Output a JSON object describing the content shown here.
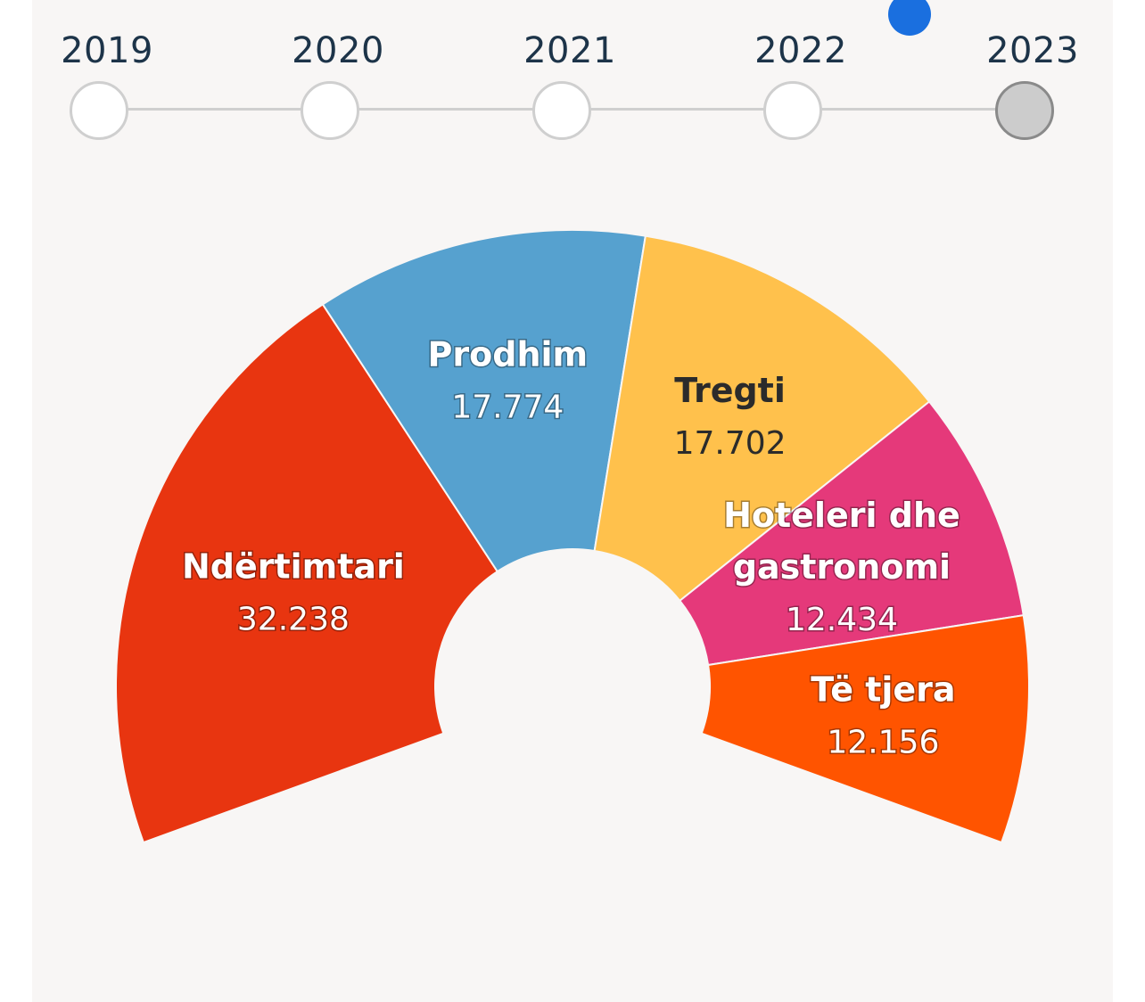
{
  "timeline": {
    "years": [
      "2019",
      "2020",
      "2021",
      "2022",
      "2023"
    ],
    "selected": "2023"
  },
  "chart_data": {
    "type": "pie",
    "variant": "semi-donut",
    "year": "2023",
    "slices": [
      {
        "label": "Ndërtimtari",
        "value": 32238,
        "display": "32.238",
        "color": "#e83510",
        "text_color": "#ffffff"
      },
      {
        "label": "Prodhim",
        "value": 17774,
        "display": "17.774",
        "color": "#56a1cf",
        "text_color": "#ffffff"
      },
      {
        "label": "Tregti",
        "value": 17702,
        "display": "17.702",
        "color": "#ffc14c",
        "text_color": "#2b2b2b"
      },
      {
        "label": "Hoteleri dhe gastronomi",
        "label_lines": [
          "Hoteleri dhe",
          "gastronomi"
        ],
        "value": 12434,
        "display": "12.434",
        "color": "#e5397a",
        "text_color": "#ffffff"
      },
      {
        "label": "Të tjera",
        "value": 12156,
        "display": "12.156",
        "color": "#ff5400",
        "text_color": "#ffffff"
      }
    ]
  }
}
